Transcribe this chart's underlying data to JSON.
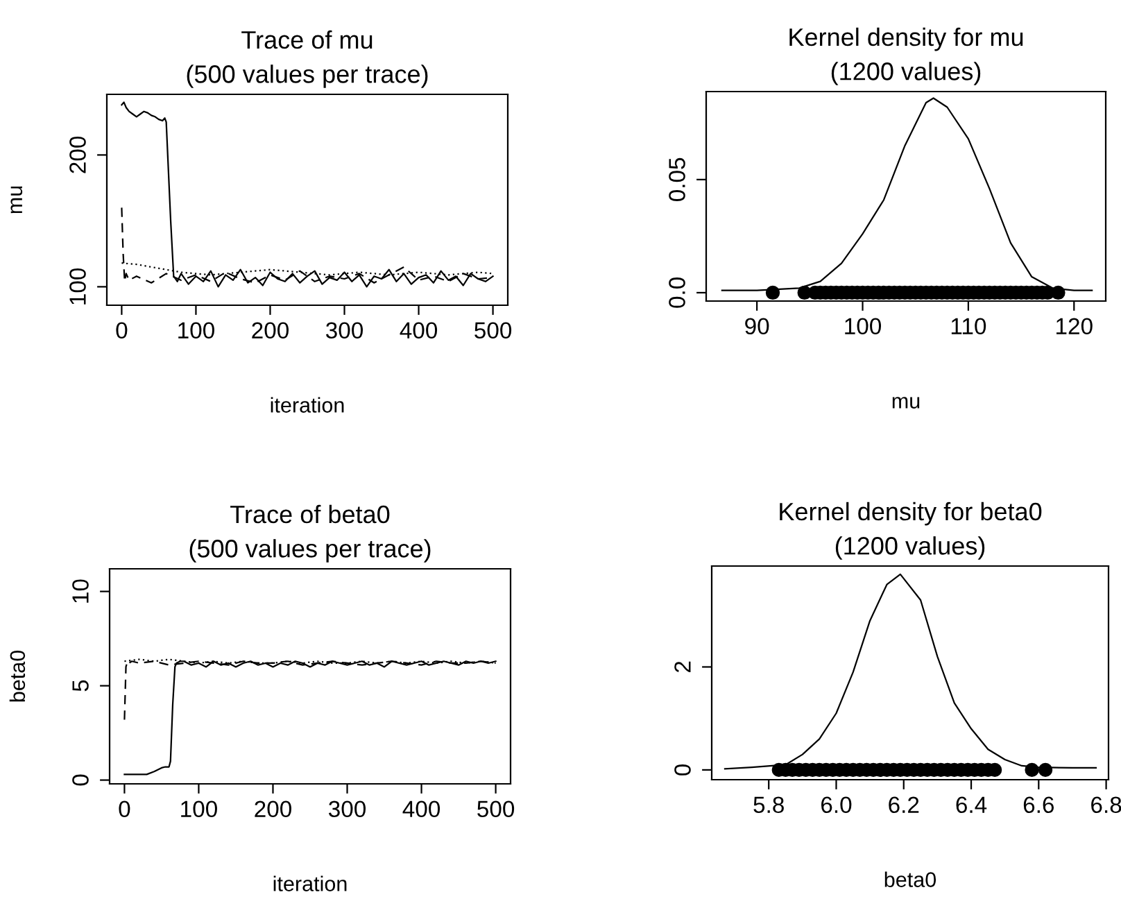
{
  "chart_data": [
    {
      "type": "line",
      "title": "Trace of mu\n(500 values per trace)",
      "xlabel": "iteration",
      "ylabel": "mu",
      "xlim": [
        -20,
        520
      ],
      "ylim": [
        86,
        246
      ],
      "xticks": [
        0,
        100,
        200,
        300,
        400,
        500
      ],
      "yticks": [
        100,
        200
      ],
      "grid": false,
      "series": [
        {
          "color": "#000000",
          "line_style": "solid",
          "x": [
            0,
            3,
            6,
            10,
            15,
            20,
            25,
            30,
            35,
            40,
            45,
            50,
            55,
            58,
            60,
            62,
            66,
            70,
            75,
            80,
            90,
            100,
            110,
            120,
            130,
            140,
            150,
            160,
            170,
            180,
            190,
            200,
            210,
            220,
            230,
            240,
            250,
            260,
            270,
            280,
            290,
            300,
            310,
            320,
            330,
            340,
            350,
            360,
            370,
            380,
            390,
            400,
            410,
            420,
            430,
            440,
            450,
            460,
            470,
            480,
            490,
            500
          ],
          "values": [
            238,
            240,
            236,
            233,
            231,
            229,
            231,
            233,
            232,
            230,
            229,
            227,
            226,
            228,
            225,
            200,
            150,
            108,
            104,
            110,
            102,
            108,
            104,
            112,
            100,
            109,
            105,
            113,
            103,
            107,
            101,
            111,
            106,
            104,
            110,
            103,
            108,
            112,
            102,
            107,
            105,
            111,
            104,
            109,
            100,
            108,
            106,
            113,
            104,
            110,
            102,
            107,
            109,
            103,
            112,
            105,
            108,
            101,
            110,
            106,
            104,
            108
          ]
        },
        {
          "color": "#000000",
          "line_style": "dashed",
          "x": [
            0,
            2,
            4,
            6,
            10,
            20,
            40,
            60,
            80,
            100,
            120,
            140,
            160,
            180,
            200,
            220,
            240,
            260,
            280,
            300,
            320,
            340,
            360,
            380,
            400,
            420,
            440,
            460,
            480,
            500
          ],
          "values": [
            160,
            125,
            104,
            110,
            105,
            108,
            103,
            110,
            105,
            109,
            104,
            111,
            106,
            103,
            109,
            105,
            112,
            104,
            108,
            106,
            110,
            103,
            109,
            115,
            105,
            108,
            104,
            110,
            106,
            107
          ]
        },
        {
          "color": "#000000",
          "line_style": "dotted",
          "x": [
            0,
            20,
            40,
            60,
            80,
            100,
            120,
            140,
            160,
            180,
            200,
            220,
            240,
            260,
            280,
            300,
            320,
            340,
            360,
            380,
            400,
            420,
            440,
            460,
            480,
            500
          ],
          "values": [
            118,
            117,
            115,
            113,
            111,
            110,
            109,
            110,
            111,
            112,
            113,
            112,
            111,
            110,
            109,
            110,
            111,
            110,
            109,
            110,
            111,
            110,
            109,
            110,
            111,
            110
          ]
        }
      ]
    },
    {
      "type": "line",
      "title": "Kernel density for mu\n(1200 values)",
      "xlabel": "mu",
      "xlim": [
        85.2,
        123
      ],
      "ylim": [
        -0.0037,
        0.0889
      ],
      "xticks": [
        90,
        100,
        110,
        120
      ],
      "yticks": [
        {
          "value": 0,
          "label": "0.0"
        },
        0.05
      ],
      "grid": false,
      "series": [
        {
          "color": "#000000",
          "line_style": "solid",
          "x": [
            86.7,
            90,
            94,
            96,
            98,
            100,
            102,
            104,
            106,
            106.7,
            108,
            110,
            112,
            114,
            116,
            118,
            120,
            121.7
          ],
          "values": [
            0.001,
            0.001,
            0.002,
            0.005,
            0.013,
            0.026,
            0.041,
            0.065,
            0.084,
            0.086,
            0.082,
            0.068,
            0.046,
            0.022,
            0.007,
            0.002,
            0.001,
            0.001
          ]
        },
        {
          "type": "scatter",
          "marker": "circle",
          "color": "#000000",
          "x": [
            91.5,
            94.5,
            95.5,
            96,
            96.5,
            97,
            97.5,
            98,
            98.5,
            99,
            99.5,
            100,
            100.5,
            101,
            101.5,
            102,
            102.5,
            103,
            103.5,
            104,
            104.5,
            105,
            105.5,
            106,
            106.5,
            107,
            107.5,
            108,
            108.5,
            109,
            109.5,
            110,
            110.5,
            111,
            111.5,
            112,
            112.5,
            113,
            113.5,
            114,
            114.5,
            115,
            115.5,
            116,
            116.5,
            117,
            117.5,
            118.5
          ],
          "values": [
            0,
            0,
            0,
            0,
            0,
            0,
            0,
            0,
            0,
            0,
            0,
            0,
            0,
            0,
            0,
            0,
            0,
            0,
            0,
            0,
            0,
            0,
            0,
            0,
            0,
            0,
            0,
            0,
            0,
            0,
            0,
            0,
            0,
            0,
            0,
            0,
            0,
            0,
            0,
            0,
            0,
            0,
            0,
            0,
            0,
            0,
            0,
            0
          ]
        }
      ]
    },
    {
      "type": "line",
      "title": "Trace of beta0\n(500 values per trace)",
      "xlabel": "iteration",
      "ylabel": "beta0",
      "xlim": [
        -20,
        520
      ],
      "ylim": [
        -0.2,
        11.2
      ],
      "xticks": [
        0,
        100,
        200,
        300,
        400,
        500
      ],
      "yticks": [
        0,
        5,
        10
      ],
      "grid": false,
      "series": [
        {
          "color": "#000000",
          "line_style": "solid",
          "x": [
            0,
            10,
            20,
            30,
            40,
            50,
            55,
            60,
            62,
            65,
            68,
            70,
            75,
            80,
            90,
            100,
            110,
            120,
            130,
            140,
            150,
            160,
            170,
            180,
            190,
            200,
            210,
            220,
            230,
            240,
            250,
            260,
            270,
            280,
            290,
            300,
            310,
            320,
            330,
            340,
            350,
            360,
            370,
            380,
            390,
            400,
            410,
            420,
            430,
            440,
            450,
            460,
            470,
            480,
            490,
            500
          ],
          "values": [
            0.3,
            0.3,
            0.3,
            0.3,
            0.45,
            0.65,
            0.7,
            0.7,
            1.0,
            4.0,
            6.0,
            6.2,
            6.3,
            6.3,
            6.1,
            6.2,
            6.0,
            6.3,
            6.1,
            6.2,
            6.0,
            6.2,
            6.3,
            6.1,
            6.2,
            6.0,
            6.2,
            6.1,
            6.3,
            6.2,
            6.0,
            6.2,
            6.1,
            6.3,
            6.2,
            6.1,
            6.2,
            6.3,
            6.1,
            6.2,
            6.0,
            6.3,
            6.2,
            6.1,
            6.2,
            6.3,
            6.1,
            6.2,
            6.3,
            6.2,
            6.1,
            6.3,
            6.2,
            6.3,
            6.2,
            6.3
          ]
        },
        {
          "color": "#000000",
          "line_style": "dashed",
          "x": [
            0,
            2,
            4,
            6,
            10,
            20,
            40,
            60,
            80,
            100,
            120,
            140,
            160,
            180,
            200,
            220,
            240,
            260,
            280,
            300,
            320,
            340,
            360,
            380,
            400,
            420,
            440,
            460,
            480,
            500
          ],
          "values": [
            3.2,
            6.0,
            6.3,
            6.2,
            6.3,
            6.2,
            6.3,
            6.1,
            6.2,
            6.3,
            6.2,
            6.1,
            6.3,
            6.2,
            6.2,
            6.3,
            6.1,
            6.2,
            6.3,
            6.2,
            6.1,
            6.2,
            6.3,
            6.2,
            6.1,
            6.3,
            6.2,
            6.2,
            6.3,
            6.2
          ]
        },
        {
          "color": "#000000",
          "line_style": "dotted",
          "x": [
            0,
            20,
            40,
            60,
            80,
            100,
            120,
            140,
            160,
            180,
            200,
            220,
            240,
            260,
            280,
            300,
            320,
            340,
            360,
            380,
            400,
            420,
            440,
            460,
            480,
            500
          ],
          "values": [
            6.3,
            6.4,
            6.3,
            6.4,
            6.3,
            6.2,
            6.3,
            6.2,
            6.3,
            6.2,
            6.2,
            6.3,
            6.2,
            6.3,
            6.2,
            6.2,
            6.3,
            6.2,
            6.3,
            6.2,
            6.3,
            6.2,
            6.3,
            6.2,
            6.3,
            6.2
          ]
        }
      ]
    },
    {
      "type": "line",
      "title": "Kernel density for beta0\n(1200 values)",
      "xlabel": "beta0",
      "xlim": [
        5.631,
        6.807
      ],
      "ylim": [
        -0.19,
        3.96
      ],
      "xticks": [
        5.8,
        {
          "value": 6.0,
          "label": "6.0"
        },
        6.2,
        6.4,
        6.6,
        6.8
      ],
      "yticks": [
        0,
        2
      ],
      "grid": false,
      "series": [
        {
          "color": "#000000",
          "line_style": "solid",
          "x": [
            5.67,
            5.75,
            5.85,
            5.9,
            5.95,
            6.0,
            6.05,
            6.1,
            6.15,
            6.19,
            6.25,
            6.3,
            6.35,
            6.4,
            6.45,
            6.5,
            6.55,
            6.6,
            6.7,
            6.77
          ],
          "values": [
            0.02,
            0.05,
            0.1,
            0.3,
            0.6,
            1.1,
            1.9,
            2.9,
            3.6,
            3.8,
            3.3,
            2.2,
            1.3,
            0.8,
            0.4,
            0.2,
            0.08,
            0.05,
            0.04,
            0.04
          ]
        },
        {
          "type": "scatter",
          "marker": "circle",
          "color": "#000000",
          "x": [
            5.83,
            5.85,
            5.87,
            5.89,
            5.91,
            5.93,
            5.95,
            5.97,
            5.99,
            6.01,
            6.03,
            6.05,
            6.07,
            6.09,
            6.11,
            6.13,
            6.15,
            6.17,
            6.19,
            6.21,
            6.23,
            6.25,
            6.27,
            6.29,
            6.31,
            6.33,
            6.35,
            6.37,
            6.39,
            6.41,
            6.43,
            6.45,
            6.47,
            6.58,
            6.62
          ],
          "values": [
            0,
            0,
            0,
            0,
            0,
            0,
            0,
            0,
            0,
            0,
            0,
            0,
            0,
            0,
            0,
            0,
            0,
            0,
            0,
            0,
            0,
            0,
            0,
            0,
            0,
            0,
            0,
            0,
            0,
            0,
            0,
            0,
            0,
            0,
            0
          ]
        }
      ]
    }
  ]
}
